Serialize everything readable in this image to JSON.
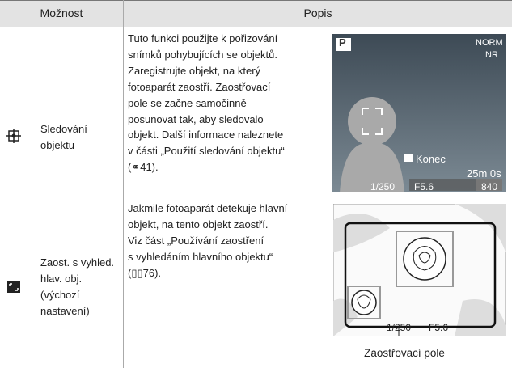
{
  "table": {
    "header": [
      "Možnost",
      "Popis"
    ],
    "rows": [
      {
        "option": [
          "Sledování",
          "objektu"
        ],
        "description": [
          "Tuto funkci použijte k pořizování",
          "snímků pohybujících se objektů.",
          "Zaregistrujte objekt, na který",
          "fotoaparát zaostří. Zaostřovací",
          "pole se začne samočinně",
          "posunovat tak, aby sledovalo",
          "objekt. Další informace naleznete",
          "v části „Použití sledování objektu“",
          "(⚭41)."
        ],
        "screen": {
          "mode": "P",
          "quality": "NORM",
          "nr": "NR",
          "ok": "Konec",
          "time": "25m 0s",
          "shutter": "1/250",
          "aperture": "F5.6",
          "shots": "840"
        }
      },
      {
        "option": [
          "Zaost. s vyhled.",
          "hlav. obj.",
          "(výchozí",
          "nastavení)"
        ],
        "description": [
          "Jakmile fotoaparát detekuje hlavní",
          "objekt, na tento objekt zaostří.",
          "Viz část „Používání zaostření",
          "s vyhledáním hlavního objektu“",
          "(▯▯76)."
        ],
        "screen": {
          "shutter": "1/250",
          "aperture": "F5.6"
        },
        "caption": "Zaostřovací pole"
      }
    ]
  }
}
